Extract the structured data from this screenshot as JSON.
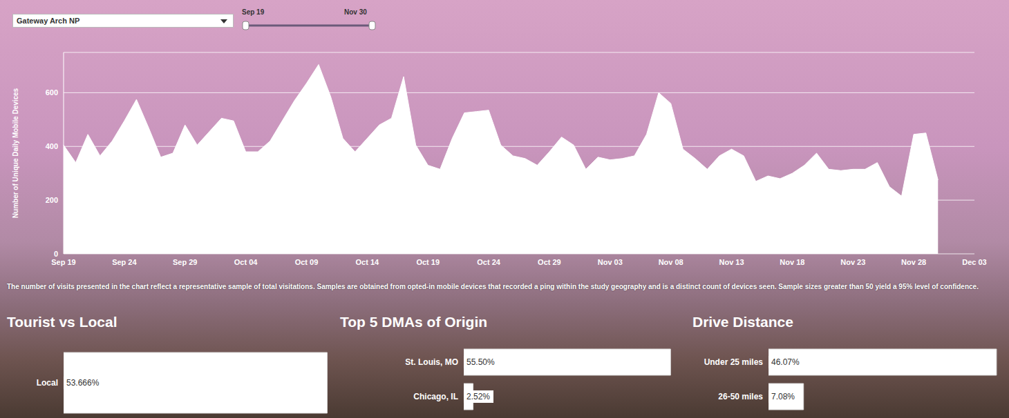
{
  "filter": {
    "selected": "Gateway Arch NP"
  },
  "date_slider": {
    "start": "Sep 19",
    "end": "Nov 30"
  },
  "note": "The number of visits presented in the chart reflect a representative sample of total visitations. Samples are obtained from opted-in mobile devices that recorded a ping within the study geography and is a distinct count of devices seen. Sample sizes greater than 50 yield a 95% level of confidence.",
  "chart_data": [
    {
      "type": "area",
      "y_label": "Number of Unique Daily Mobile Devices",
      "categories": [
        "Sep 19",
        null,
        null,
        null,
        null,
        "Sep 24",
        null,
        null,
        null,
        null,
        "Sep 29",
        null,
        null,
        null,
        null,
        "Oct 04",
        null,
        null,
        null,
        null,
        "Oct 09",
        null,
        null,
        null,
        null,
        "Oct 14",
        null,
        null,
        null,
        null,
        "Oct 19",
        null,
        null,
        null,
        null,
        "Oct 24",
        null,
        null,
        null,
        null,
        "Oct 29",
        null,
        null,
        null,
        null,
        "Nov 03",
        null,
        null,
        null,
        null,
        "Nov 08",
        null,
        null,
        null,
        null,
        "Nov 13",
        null,
        null,
        null,
        null,
        "Nov 18",
        null,
        null,
        null,
        null,
        "Nov 23",
        null,
        null,
        null,
        null,
        "Nov 28",
        null,
        null,
        null,
        null,
        "Dec 03"
      ],
      "values": [
        405,
        340,
        445,
        365,
        420,
        495,
        575,
        470,
        360,
        375,
        480,
        405,
        455,
        505,
        495,
        380,
        380,
        420,
        495,
        570,
        635,
        705,
        585,
        430,
        380,
        430,
        480,
        505,
        660,
        405,
        330,
        315,
        430,
        525,
        530,
        535,
        405,
        365,
        355,
        330,
        380,
        435,
        405,
        315,
        360,
        350,
        355,
        365,
        445,
        600,
        560,
        390,
        355,
        315,
        365,
        390,
        365,
        270,
        290,
        280,
        300,
        330,
        375,
        315,
        310,
        315,
        315,
        340,
        250,
        215,
        445,
        450,
        275,
        null,
        null,
        null
      ],
      "color": "#ffffff",
      "ylim": [
        0,
        750
      ],
      "yticks": [
        0,
        200,
        400,
        600
      ],
      "grid": true
    },
    {
      "type": "bar",
      "title": "Tourist vs Local",
      "orientation": "horizontal",
      "categories": [
        "Local"
      ],
      "values": [
        53.666
      ],
      "value_labels": [
        "53.666%"
      ],
      "data_labels": true,
      "xlim": [
        0,
        56
      ],
      "tick_labels": "y",
      "color": "#ffffff"
    },
    {
      "type": "bar",
      "title": "Top 5 DMAs of Origin",
      "orientation": "horizontal",
      "categories": [
        "St. Louis, MO",
        "Chicago, IL"
      ],
      "values": [
        55.5,
        2.52
      ],
      "value_labels": [
        "55.50%",
        "2.52%"
      ],
      "data_labels": true,
      "xlim": [
        0,
        56
      ],
      "tick_labels": "y",
      "color": "#ffffff"
    },
    {
      "type": "bar",
      "title": "Drive Distance",
      "orientation": "horizontal",
      "categories": [
        "Under 25 miles",
        "26-50 miles"
      ],
      "values": [
        46.07,
        7.08
      ],
      "value_labels": [
        "46.07%",
        "7.08%"
      ],
      "data_labels": true,
      "xlim": [
        0,
        46.5
      ],
      "tick_labels": "y",
      "color": "#ffffff"
    }
  ]
}
